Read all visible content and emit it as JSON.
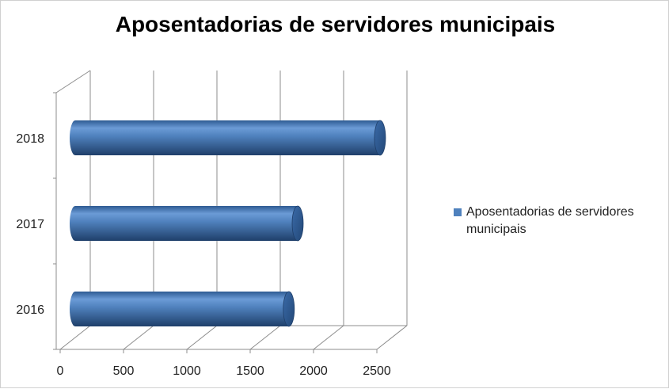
{
  "chart_data": {
    "type": "bar",
    "orientation": "horizontal",
    "style": "3d-cylinder",
    "title": "Aposentadorias de servidores municipais",
    "categories": [
      "2016",
      "2017",
      "2018"
    ],
    "series": [
      {
        "name": "Aposentadorias de servidores municipais",
        "values": [
          1680,
          1750,
          2400
        ],
        "color": "#4f81bd"
      }
    ],
    "xlim": [
      0,
      2500
    ],
    "xticks": [
      "0",
      "500",
      "1000",
      "1500",
      "2000",
      "2500"
    ],
    "grid": true,
    "legend_position": "right"
  }
}
